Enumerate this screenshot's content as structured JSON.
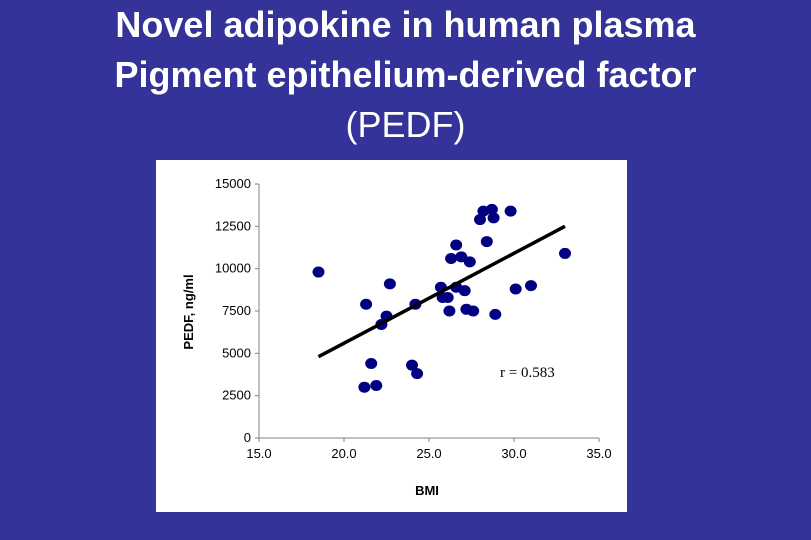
{
  "slide": {
    "title_line1": "Novel adipokine in human plasma",
    "title_line2": "Pigment epithelium-derived factor",
    "title_line3": "(PEDF)"
  },
  "colors": {
    "background": "#333399",
    "panel": "#ffffff",
    "points": "#000080",
    "trendline": "#000000",
    "title": "#ffffff"
  },
  "chart_data": {
    "type": "scatter",
    "xlabel": "BMI",
    "ylabel": "PEDF, ng/ml",
    "xlim": [
      15.0,
      35.0
    ],
    "ylim": [
      0,
      15000
    ],
    "x_ticks": [
      "15.0",
      "20.0",
      "25.0",
      "30.0",
      "35.0"
    ],
    "y_ticks": [
      "0",
      "2500",
      "5000",
      "7500",
      "10000",
      "12500",
      "15000"
    ],
    "grid": false,
    "annotation": "r = 0.583",
    "points": [
      {
        "x": 18.5,
        "y": 9800
      },
      {
        "x": 21.2,
        "y": 3000
      },
      {
        "x": 21.3,
        "y": 7900
      },
      {
        "x": 21.6,
        "y": 4400
      },
      {
        "x": 21.9,
        "y": 3100
      },
      {
        "x": 22.2,
        "y": 6700
      },
      {
        "x": 22.5,
        "y": 7200
      },
      {
        "x": 22.7,
        "y": 9100
      },
      {
        "x": 24.0,
        "y": 4300
      },
      {
        "x": 24.2,
        "y": 7900
      },
      {
        "x": 24.3,
        "y": 3800
      },
      {
        "x": 25.7,
        "y": 8900
      },
      {
        "x": 25.8,
        "y": 8300
      },
      {
        "x": 26.1,
        "y": 8300
      },
      {
        "x": 26.2,
        "y": 7500
      },
      {
        "x": 26.3,
        "y": 10600
      },
      {
        "x": 26.6,
        "y": 11400
      },
      {
        "x": 26.6,
        "y": 8900
      },
      {
        "x": 26.9,
        "y": 10700
      },
      {
        "x": 27.1,
        "y": 8700
      },
      {
        "x": 27.2,
        "y": 7600
      },
      {
        "x": 27.4,
        "y": 10400
      },
      {
        "x": 27.6,
        "y": 7500
      },
      {
        "x": 28.0,
        "y": 12900
      },
      {
        "x": 28.2,
        "y": 13400
      },
      {
        "x": 28.4,
        "y": 11600
      },
      {
        "x": 28.7,
        "y": 13500
      },
      {
        "x": 28.8,
        "y": 13000
      },
      {
        "x": 28.9,
        "y": 7300
      },
      {
        "x": 29.8,
        "y": 13400
      },
      {
        "x": 30.1,
        "y": 8800
      },
      {
        "x": 31.0,
        "y": 9000
      },
      {
        "x": 33.0,
        "y": 10900
      }
    ],
    "trendline": {
      "x": [
        18.5,
        33.0
      ],
      "y": [
        4800,
        12500
      ]
    }
  }
}
